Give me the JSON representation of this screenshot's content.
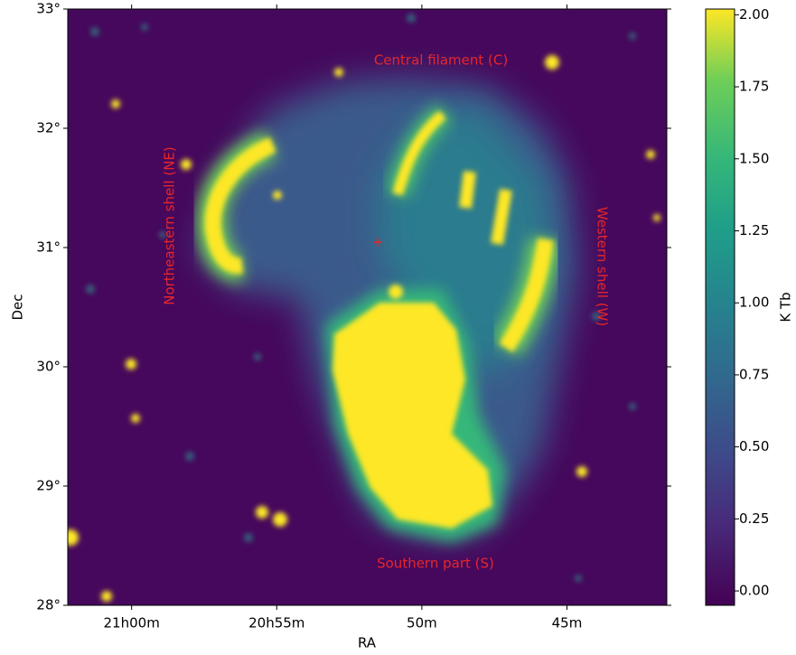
{
  "chart_data": {
    "type": "image",
    "x_label": "RA",
    "y_label": "Dec",
    "xlim": [
      315.55,
      310.39
    ],
    "xticks": [
      {
        "value": 315,
        "label": "21h00m"
      },
      {
        "value": 313.75,
        "label": "20h55m"
      },
      {
        "value": 312.5,
        "label": "50m"
      },
      {
        "value": 311.25,
        "label": "45m"
      }
    ],
    "ylim": [
      28,
      33
    ],
    "yticks": [
      {
        "value": 28,
        "label": "28°"
      },
      {
        "value": 29,
        "label": "29°"
      },
      {
        "value": 30,
        "label": "30°"
      },
      {
        "value": 31,
        "label": "31°"
      },
      {
        "value": 32,
        "label": "32°"
      },
      {
        "value": 33,
        "label": "33°"
      }
    ],
    "colorbar_label": "K Tb",
    "clim": [
      -0.05,
      2.02
    ],
    "cticks": [
      {
        "value": 0,
        "label": "0.00"
      },
      {
        "value": 0.25,
        "label": "0.25"
      },
      {
        "value": 0.5,
        "label": "0.50"
      },
      {
        "value": 0.75,
        "label": "0.75"
      },
      {
        "value": 1,
        "label": "1.00"
      },
      {
        "value": 1.25,
        "label": "1.25"
      },
      {
        "value": 1.5,
        "label": "1.50"
      },
      {
        "value": 1.75,
        "label": "1.75"
      },
      {
        "value": 2,
        "label": "2.00"
      }
    ],
    "annotations": [
      "Central filament (C)",
      "Northeastern shell (NE)",
      "Western shell (W)",
      "Southern part (S)"
    ]
  }
}
